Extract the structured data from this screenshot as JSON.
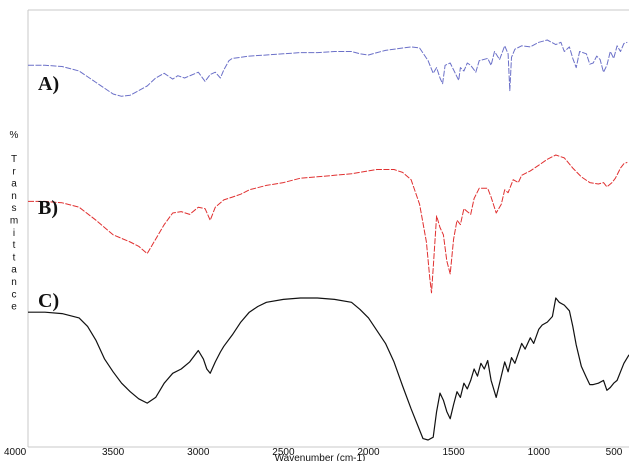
{
  "chart_data": {
    "type": "line",
    "title": "",
    "xlabel": "Wavenumber (cm-1)",
    "ylabel": "% Transmittance",
    "xlim": [
      4000,
      470
    ],
    "x_reversed": true,
    "grid": false,
    "legend": "none",
    "xticks": [
      4000,
      3500,
      3000,
      2500,
      2000,
      1500,
      1000,
      500
    ],
    "series": [
      {
        "label": "A)",
        "color": "#6b70c8",
        "offset": 0,
        "points": [
          [
            4000,
            22
          ],
          [
            3900,
            22
          ],
          [
            3800,
            23
          ],
          [
            3700,
            27
          ],
          [
            3600,
            37
          ],
          [
            3500,
            47
          ],
          [
            3450,
            49
          ],
          [
            3400,
            48
          ],
          [
            3300,
            40
          ],
          [
            3250,
            33
          ],
          [
            3200,
            29
          ],
          [
            3150,
            34
          ],
          [
            3120,
            31
          ],
          [
            3080,
            33
          ],
          [
            3000,
            28
          ],
          [
            2960,
            36
          ],
          [
            2930,
            30
          ],
          [
            2900,
            28
          ],
          [
            2870,
            33
          ],
          [
            2850,
            26
          ],
          [
            2820,
            18
          ],
          [
            2800,
            16
          ],
          [
            2750,
            15
          ],
          [
            2700,
            14
          ],
          [
            2600,
            13
          ],
          [
            2500,
            12
          ],
          [
            2400,
            11
          ],
          [
            2300,
            11
          ],
          [
            2200,
            10
          ],
          [
            2100,
            10
          ],
          [
            2050,
            12
          ],
          [
            2000,
            13
          ],
          [
            1950,
            11
          ],
          [
            1900,
            9
          ],
          [
            1800,
            7
          ],
          [
            1750,
            6
          ],
          [
            1700,
            7
          ],
          [
            1650,
            18
          ],
          [
            1620,
            29
          ],
          [
            1600,
            24
          ],
          [
            1580,
            33
          ],
          [
            1565,
            38
          ],
          [
            1550,
            22
          ],
          [
            1520,
            20
          ],
          [
            1500,
            26
          ],
          [
            1470,
            35
          ],
          [
            1460,
            24
          ],
          [
            1440,
            27
          ],
          [
            1420,
            20
          ],
          [
            1400,
            22
          ],
          [
            1370,
            28
          ],
          [
            1350,
            18
          ],
          [
            1300,
            16
          ],
          [
            1280,
            22
          ],
          [
            1260,
            10
          ],
          [
            1230,
            17
          ],
          [
            1200,
            5
          ],
          [
            1180,
            12
          ],
          [
            1170,
            44
          ],
          [
            1160,
            15
          ],
          [
            1140,
            8
          ],
          [
            1100,
            5
          ],
          [
            1050,
            6
          ],
          [
            1000,
            2
          ],
          [
            950,
            0
          ],
          [
            900,
            4
          ],
          [
            870,
            2
          ],
          [
            850,
            10
          ],
          [
            820,
            6
          ],
          [
            800,
            16
          ],
          [
            780,
            24
          ],
          [
            760,
            10
          ],
          [
            720,
            12
          ],
          [
            700,
            21
          ],
          [
            680,
            20
          ],
          [
            660,
            14
          ],
          [
            640,
            17
          ],
          [
            620,
            28
          ],
          [
            600,
            22
          ],
          [
            580,
            10
          ],
          [
            560,
            16
          ],
          [
            540,
            5
          ],
          [
            520,
            10
          ],
          [
            500,
            3
          ],
          [
            480,
            2
          ]
        ]
      },
      {
        "label": "B)",
        "color": "#e03030",
        "offset": 1,
        "points": [
          [
            4000,
            32
          ],
          [
            3900,
            32
          ],
          [
            3800,
            33
          ],
          [
            3700,
            36
          ],
          [
            3600,
            45
          ],
          [
            3500,
            55
          ],
          [
            3400,
            60
          ],
          [
            3350,
            63
          ],
          [
            3300,
            68
          ],
          [
            3250,
            58
          ],
          [
            3200,
            48
          ],
          [
            3150,
            40
          ],
          [
            3100,
            39
          ],
          [
            3050,
            41
          ],
          [
            3000,
            36
          ],
          [
            2960,
            37
          ],
          [
            2930,
            45
          ],
          [
            2900,
            36
          ],
          [
            2850,
            31
          ],
          [
            2800,
            29
          ],
          [
            2750,
            27
          ],
          [
            2700,
            24
          ],
          [
            2600,
            21
          ],
          [
            2500,
            19
          ],
          [
            2400,
            16
          ],
          [
            2300,
            15
          ],
          [
            2200,
            14
          ],
          [
            2100,
            13
          ],
          [
            2000,
            11
          ],
          [
            1950,
            10
          ],
          [
            1900,
            10
          ],
          [
            1850,
            10
          ],
          [
            1800,
            12
          ],
          [
            1750,
            17
          ],
          [
            1700,
            34
          ],
          [
            1660,
            60
          ],
          [
            1640,
            85
          ],
          [
            1630,
            95
          ],
          [
            1620,
            78
          ],
          [
            1600,
            42
          ],
          [
            1580,
            50
          ],
          [
            1560,
            55
          ],
          [
            1540,
            73
          ],
          [
            1520,
            82
          ],
          [
            1500,
            58
          ],
          [
            1480,
            45
          ],
          [
            1460,
            48
          ],
          [
            1440,
            37
          ],
          [
            1420,
            39
          ],
          [
            1400,
            41
          ],
          [
            1380,
            30
          ],
          [
            1350,
            23
          ],
          [
            1300,
            23
          ],
          [
            1280,
            29
          ],
          [
            1250,
            40
          ],
          [
            1220,
            34
          ],
          [
            1200,
            24
          ],
          [
            1180,
            26
          ],
          [
            1150,
            17
          ],
          [
            1120,
            19
          ],
          [
            1100,
            14
          ],
          [
            1050,
            11
          ],
          [
            1000,
            7
          ],
          [
            950,
            3
          ],
          [
            900,
            0
          ],
          [
            850,
            2
          ],
          [
            800,
            9
          ],
          [
            750,
            15
          ],
          [
            700,
            19
          ],
          [
            650,
            20
          ],
          [
            620,
            19
          ],
          [
            600,
            22
          ],
          [
            570,
            19
          ],
          [
            550,
            16
          ],
          [
            520,
            9
          ],
          [
            500,
            6
          ],
          [
            480,
            5
          ]
        ]
      },
      {
        "label": "C)",
        "color": "#111111",
        "offset": 2,
        "points": [
          [
            4000,
            10
          ],
          [
            3900,
            10
          ],
          [
            3800,
            11
          ],
          [
            3700,
            14
          ],
          [
            3650,
            20
          ],
          [
            3600,
            30
          ],
          [
            3550,
            43
          ],
          [
            3500,
            52
          ],
          [
            3450,
            60
          ],
          [
            3400,
            66
          ],
          [
            3350,
            71
          ],
          [
            3300,
            74
          ],
          [
            3250,
            70
          ],
          [
            3200,
            60
          ],
          [
            3150,
            53
          ],
          [
            3100,
            50
          ],
          [
            3050,
            45
          ],
          [
            3000,
            37
          ],
          [
            2970,
            43
          ],
          [
            2950,
            50
          ],
          [
            2930,
            53
          ],
          [
            2900,
            45
          ],
          [
            2870,
            38
          ],
          [
            2850,
            34
          ],
          [
            2800,
            26
          ],
          [
            2750,
            17
          ],
          [
            2700,
            10
          ],
          [
            2650,
            6
          ],
          [
            2600,
            3
          ],
          [
            2500,
            1
          ],
          [
            2400,
            0
          ],
          [
            2300,
            0
          ],
          [
            2200,
            1
          ],
          [
            2100,
            3
          ],
          [
            2050,
            8
          ],
          [
            2000,
            14
          ],
          [
            1950,
            23
          ],
          [
            1900,
            32
          ],
          [
            1850,
            45
          ],
          [
            1800,
            62
          ],
          [
            1750,
            78
          ],
          [
            1700,
            93
          ],
          [
            1680,
            99
          ],
          [
            1650,
            100
          ],
          [
            1620,
            98
          ],
          [
            1600,
            80
          ],
          [
            1580,
            67
          ],
          [
            1560,
            72
          ],
          [
            1540,
            80
          ],
          [
            1520,
            85
          ],
          [
            1500,
            75
          ],
          [
            1480,
            66
          ],
          [
            1460,
            70
          ],
          [
            1440,
            60
          ],
          [
            1420,
            64
          ],
          [
            1400,
            58
          ],
          [
            1380,
            50
          ],
          [
            1360,
            55
          ],
          [
            1340,
            46
          ],
          [
            1320,
            50
          ],
          [
            1300,
            44
          ],
          [
            1280,
            58
          ],
          [
            1250,
            70
          ],
          [
            1230,
            60
          ],
          [
            1200,
            45
          ],
          [
            1180,
            52
          ],
          [
            1160,
            42
          ],
          [
            1140,
            46
          ],
          [
            1100,
            32
          ],
          [
            1080,
            36
          ],
          [
            1050,
            28
          ],
          [
            1030,
            32
          ],
          [
            1000,
            22
          ],
          [
            980,
            19
          ],
          [
            950,
            17
          ],
          [
            920,
            13
          ],
          [
            900,
            0
          ],
          [
            880,
            3
          ],
          [
            850,
            5
          ],
          [
            820,
            9
          ],
          [
            800,
            20
          ],
          [
            780,
            33
          ],
          [
            750,
            48
          ],
          [
            720,
            56
          ],
          [
            700,
            61
          ],
          [
            680,
            61
          ],
          [
            650,
            60
          ],
          [
            620,
            58
          ],
          [
            600,
            65
          ],
          [
            580,
            63
          ],
          [
            560,
            60
          ],
          [
            540,
            58
          ],
          [
            520,
            52
          ],
          [
            500,
            46
          ],
          [
            470,
            40
          ]
        ]
      }
    ]
  }
}
